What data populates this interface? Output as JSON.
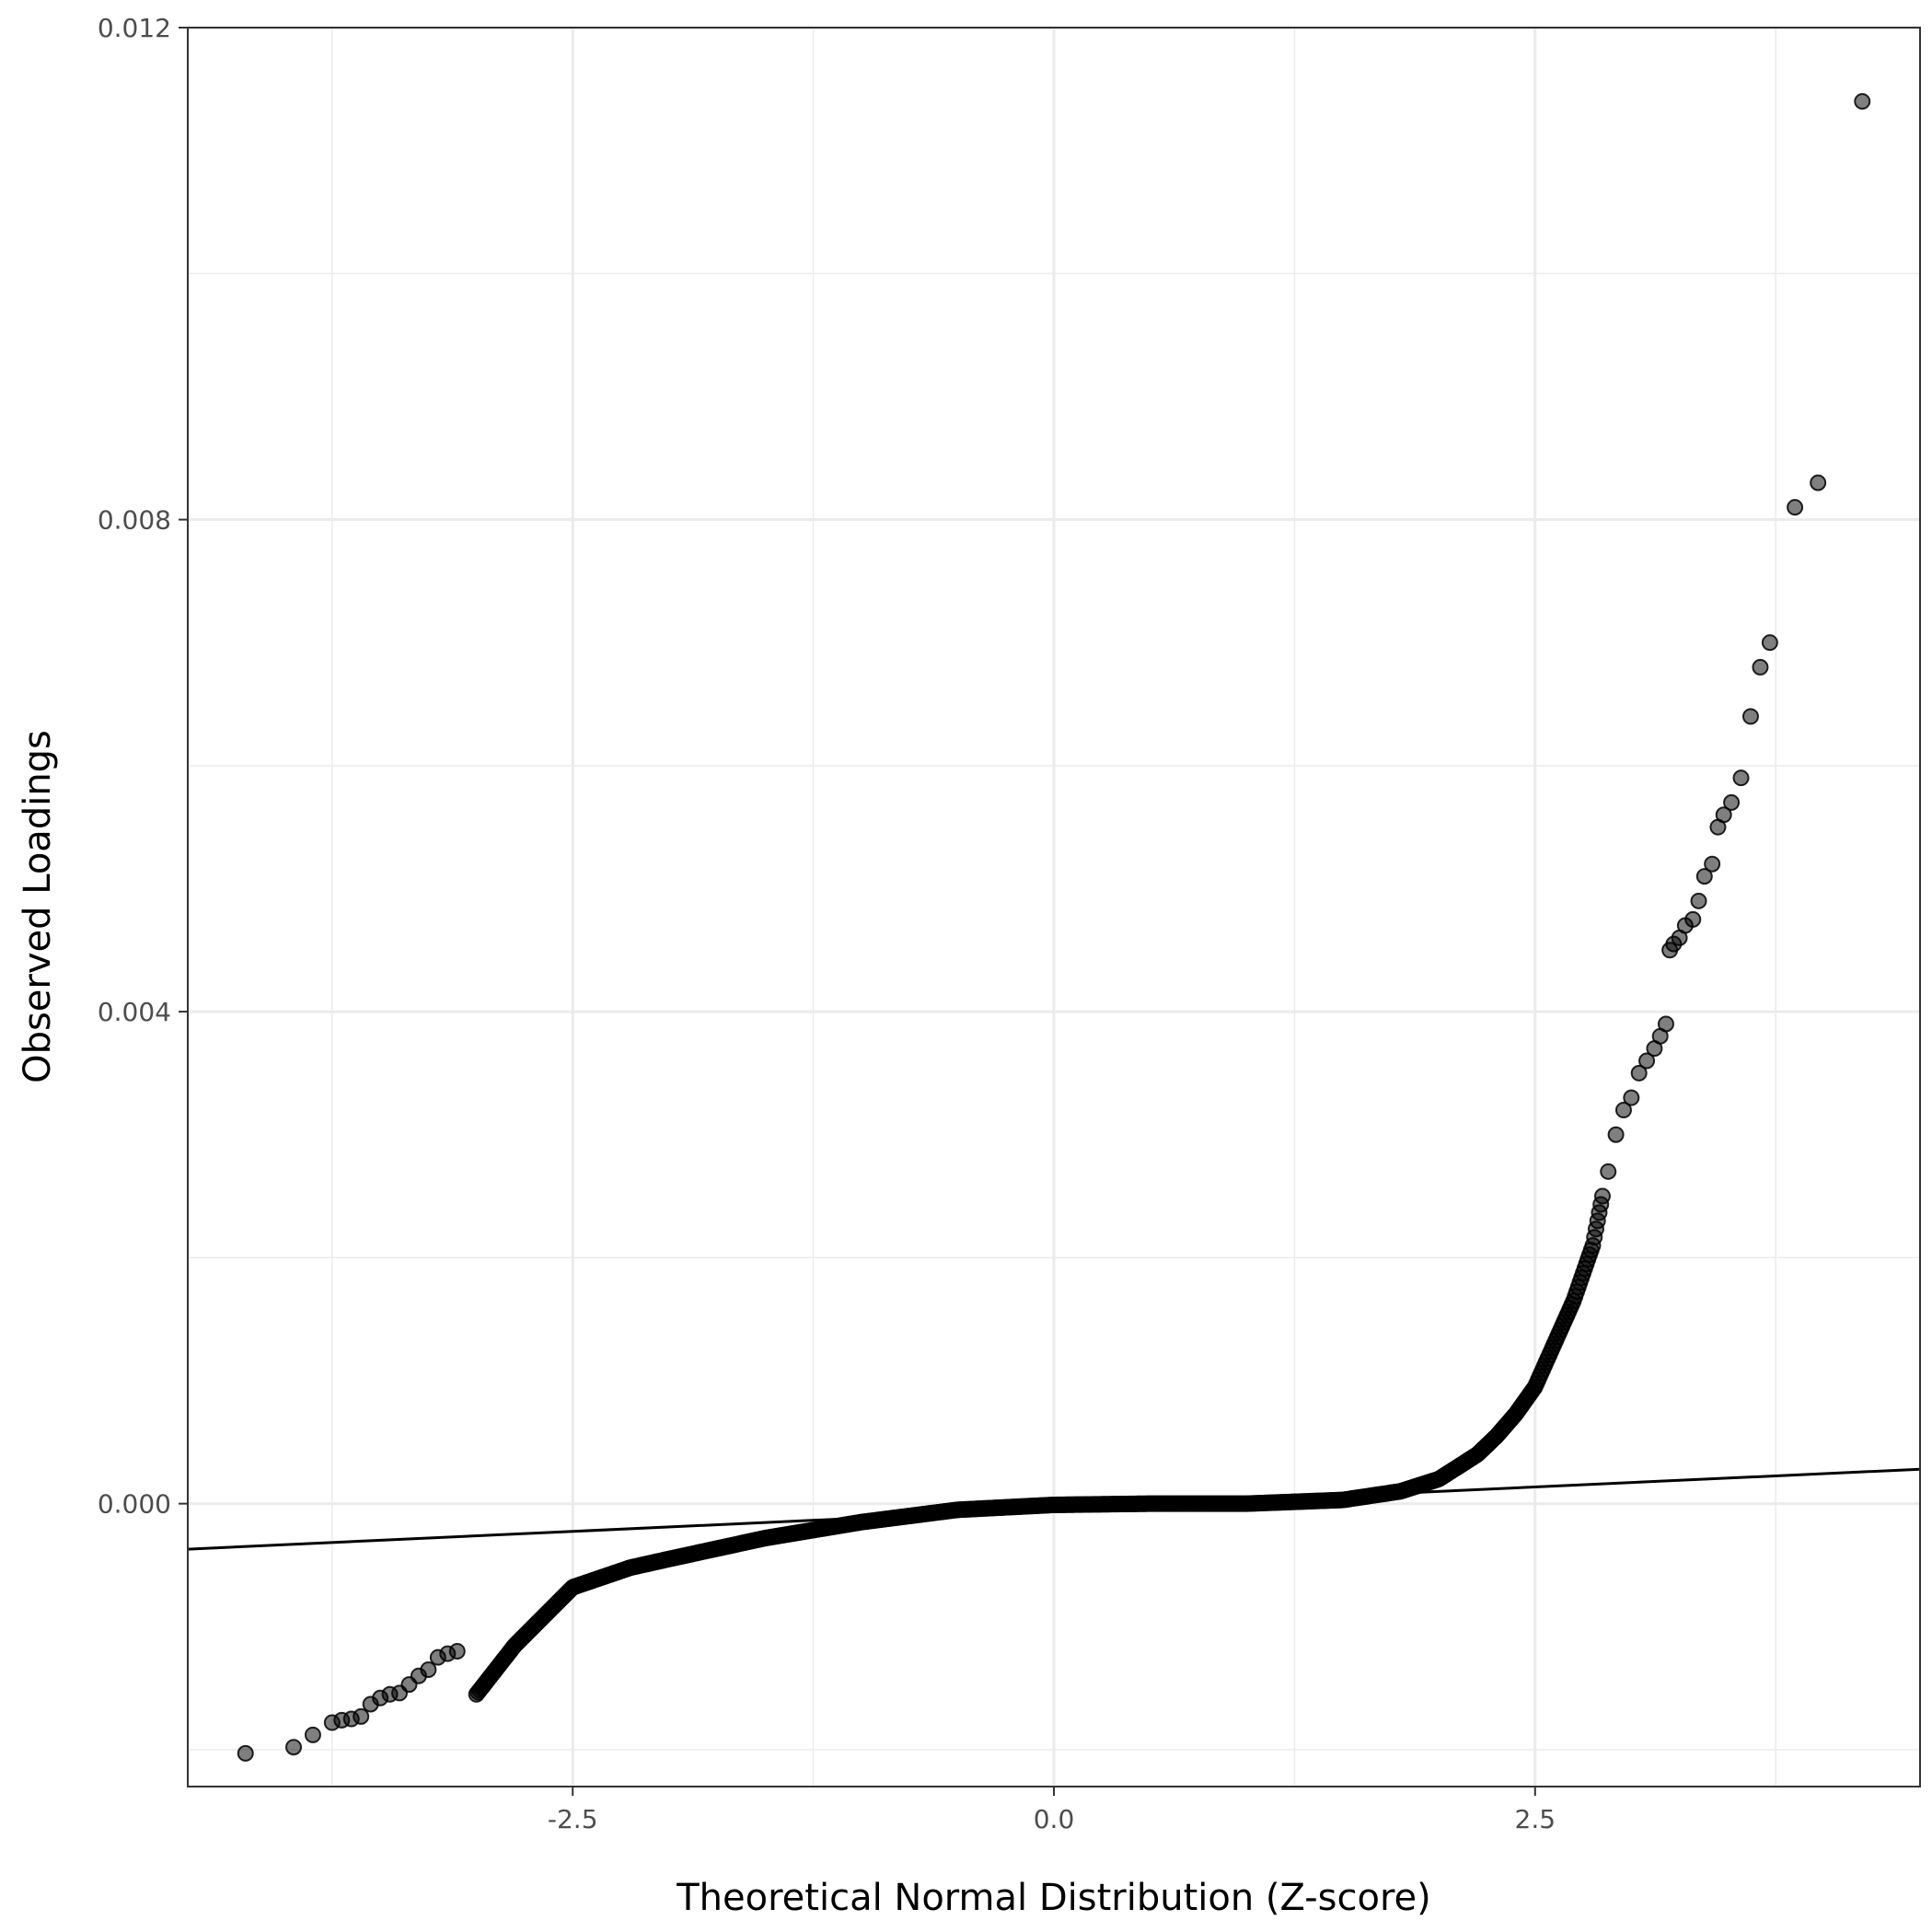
{
  "chart_data": {
    "type": "scatter",
    "title": "",
    "xlabel": "Theoretical Normal Distribution (Z-score)",
    "ylabel": "Observed Loadings",
    "xlim": [
      -4.5,
      4.5
    ],
    "ylim": [
      -0.0023,
      0.012
    ],
    "x_ticks": [
      -2.5,
      0.0,
      2.5
    ],
    "x_tick_labels": [
      "-2.5",
      "0.0",
      "2.5"
    ],
    "y_ticks": [
      0.0,
      0.004,
      0.008,
      0.012
    ],
    "y_tick_labels": [
      "0.000",
      "0.004",
      "0.008",
      "0.012"
    ],
    "grid": true,
    "reference_line": {
      "x": [
        -4.5,
        4.5
      ],
      "y": [
        -0.00037,
        0.00028
      ]
    },
    "curve_knots": {
      "x": [
        -3.0,
        -2.8,
        -2.5,
        -2.2,
        -2.0,
        -1.5,
        -1.0,
        -0.5,
        0.0,
        0.5,
        1.0,
        1.5,
        1.8,
        2.0,
        2.2,
        2.3,
        2.4,
        2.5,
        2.6,
        2.7,
        2.8,
        2.85
      ],
      "y": [
        -0.00155,
        -0.00115,
        -0.00068,
        -0.00052,
        -0.00045,
        -0.00028,
        -0.00015,
        -5e-05,
        -1e-05,
        0.0,
        0.0,
        3e-05,
        0.0001,
        0.0002,
        0.0004,
        0.00055,
        0.00073,
        0.00095,
        0.0013,
        0.00165,
        0.0021,
        0.0025
      ]
    },
    "outliers": {
      "x": [
        -4.2,
        -3.95,
        -3.85,
        -3.75,
        -3.7,
        -3.65,
        -3.6,
        -3.55,
        -3.5,
        -3.45,
        -3.4,
        -3.35,
        -3.3,
        -3.25,
        -3.2,
        -3.15,
        -3.1,
        2.88,
        2.92,
        2.96,
        3.0,
        3.04,
        3.08,
        3.12,
        3.15,
        3.18,
        3.2,
        3.22,
        3.25,
        3.28,
        3.32,
        3.35,
        3.38,
        3.42,
        3.45,
        3.48,
        3.52,
        3.57,
        3.62,
        3.67,
        3.72,
        3.85,
        3.97,
        4.2
      ],
      "y": [
        -0.00203,
        -0.00198,
        -0.00188,
        -0.00178,
        -0.00176,
        -0.00175,
        -0.00173,
        -0.00163,
        -0.00158,
        -0.00155,
        -0.00154,
        -0.00147,
        -0.0014,
        -0.00135,
        -0.00125,
        -0.00122,
        -0.0012,
        0.0027,
        0.003,
        0.0032,
        0.0033,
        0.0035,
        0.0036,
        0.0037,
        0.0038,
        0.0039,
        0.0045,
        0.00455,
        0.0046,
        0.0047,
        0.00475,
        0.0049,
        0.0051,
        0.0052,
        0.0055,
        0.0056,
        0.0057,
        0.0059,
        0.0064,
        0.0068,
        0.007,
        0.0081,
        0.0083,
        0.0114
      ]
    }
  }
}
